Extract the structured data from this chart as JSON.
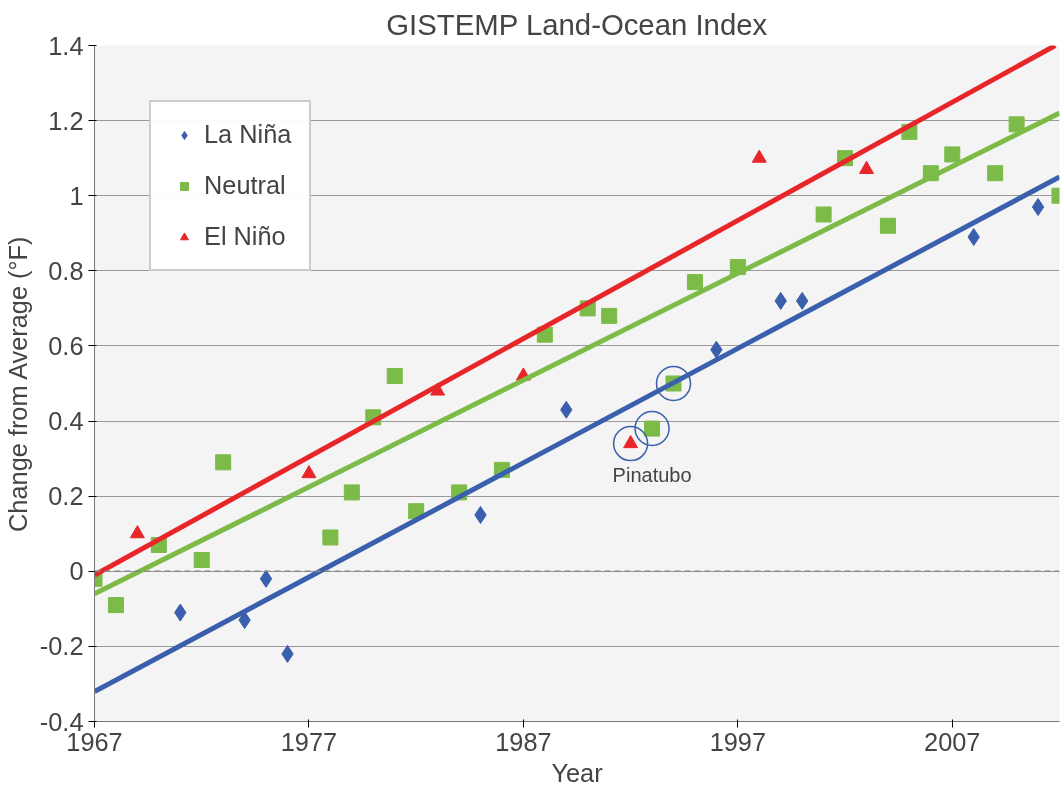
{
  "chart_data": {
    "type": "scatter",
    "title": "GISTEMP Land-Ocean Index",
    "xlabel": "Year",
    "ylabel": "Change from Average (°F)",
    "xlim": [
      1967,
      2012
    ],
    "xticks": [
      1967,
      1977,
      1987,
      1997,
      2007
    ],
    "ylim": [
      -0.4,
      1.4
    ],
    "yticks": [
      -0.4,
      -0.2,
      0,
      0.2,
      0.4,
      0.6,
      0.8,
      1,
      1.2,
      1.4
    ],
    "grid": "y",
    "legend": "top left",
    "ref_lines": [
      {
        "axis": "y",
        "value": 0,
        "label": null,
        "color": "#888888",
        "line_style": "dashed"
      }
    ],
    "annotations": [
      {
        "text": "Pinatubo",
        "x": 1992,
        "y": 0.34
      }
    ],
    "series": [
      {
        "name": "La Niña",
        "marker": "diamond",
        "color": "#3a5fad",
        "x": [
          1971,
          1974,
          1975,
          1976,
          1985,
          1989,
          1996,
          1999,
          2000,
          2008,
          2011
        ],
        "values": [
          -0.11,
          -0.13,
          -0.02,
          -0.22,
          0.15,
          0.43,
          0.59,
          0.72,
          0.72,
          0.89,
          0.97
        ]
      },
      {
        "name": "Neutral",
        "marker": "square",
        "color": "#7cbb47",
        "x": [
          1967,
          1968,
          1970,
          1972,
          1973,
          1978,
          1979,
          1980,
          1981,
          1982,
          1984,
          1986,
          1988,
          1990,
          1991,
          1993,
          1994,
          1995,
          1997,
          2001,
          2002,
          2004,
          2005,
          2006,
          2007,
          2009,
          2010,
          2012
        ],
        "values": [
          -0.02,
          -0.09,
          0.07,
          0.03,
          0.29,
          0.09,
          0.21,
          0.41,
          0.52,
          0.16,
          0.21,
          0.27,
          0.63,
          0.7,
          0.68,
          0.38,
          0.5,
          0.77,
          0.81,
          0.95,
          1.1,
          0.92,
          1.17,
          1.06,
          1.11,
          1.06,
          1.19,
          1.0
        ]
      },
      {
        "name": "El Niño",
        "marker": "triangle",
        "color": "#e8262a",
        "x": [
          1969,
          1977,
          1983,
          1987,
          1992,
          1998,
          2003
        ],
        "values": [
          0.1,
          0.26,
          0.48,
          0.52,
          0.34,
          1.1,
          1.07
        ]
      },
      {
        "type": "line",
        "color": "#e8262a",
        "x": [
          1967,
          2011.8
        ],
        "values": [
          -0.01,
          1.4
        ]
      },
      {
        "type": "line",
        "color": "#7cbb47",
        "x": [
          1967,
          2012
        ],
        "values": [
          -0.06,
          1.22
        ]
      },
      {
        "type": "line",
        "color": "#3a5fad",
        "x": [
          1967,
          2012
        ],
        "values": [
          -0.32,
          1.05
        ]
      }
    ]
  }
}
